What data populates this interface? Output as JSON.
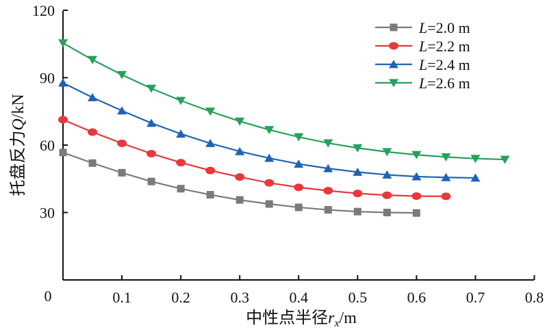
{
  "chart_data": {
    "type": "line",
    "title": "",
    "xlabel": "中性点半径r_x/m",
    "xlabel_main": "中性点半径",
    "xlabel_var": "r",
    "xlabel_sub": "x",
    "xlabel_unit": "/m",
    "ylabel": "托盘反力Q/kN",
    "ylabel_main": "托盘反力",
    "ylabel_var": "Q",
    "ylabel_unit": "/kN",
    "xlim": [
      0,
      0.8
    ],
    "ylim": [
      0,
      120
    ],
    "origin_label": "0",
    "xticks": [
      0.1,
      0.2,
      0.3,
      0.4,
      0.5,
      0.6,
      0.7,
      0.8
    ],
    "xtick_labels": [
      "0.1",
      "0.2",
      "0.3",
      "0.4",
      "0.5",
      "0.6",
      "0.7",
      "0.8"
    ],
    "yticks": [
      30,
      60,
      90,
      120
    ],
    "ytick_labels": [
      "30",
      "60",
      "90",
      "120"
    ],
    "grid": false,
    "legend_position": "top-right",
    "series": [
      {
        "name": "L=2.0 m",
        "var": "L",
        "label_rest": "=2.0 m",
        "color": "#7a7a7a",
        "marker": "square",
        "x": [
          0,
          0.05,
          0.1,
          0.15,
          0.2,
          0.25,
          0.3,
          0.35,
          0.4,
          0.45,
          0.5,
          0.55,
          0.6
        ],
        "values": [
          56.7,
          52,
          47.7,
          43.8,
          40.6,
          37.9,
          35.6,
          33.8,
          32.3,
          31.2,
          30.4,
          30.0,
          29.8
        ]
      },
      {
        "name": "L=2.2 m",
        "var": "L",
        "label_rest": "=2.2 m",
        "color": "#e8383a",
        "marker": "circle",
        "x": [
          0,
          0.05,
          0.1,
          0.15,
          0.2,
          0.25,
          0.3,
          0.35,
          0.4,
          0.45,
          0.5,
          0.55,
          0.6,
          0.65
        ],
        "values": [
          71.3,
          65.8,
          60.8,
          56.2,
          52.2,
          48.7,
          45.8,
          43.2,
          41.2,
          39.7,
          38.5,
          37.7,
          37.3,
          37.2
        ]
      },
      {
        "name": "L=2.4 m",
        "var": "L",
        "label_rest": "=2.4 m",
        "color": "#1f63b5",
        "marker": "triangle-up",
        "x": [
          0,
          0.05,
          0.1,
          0.15,
          0.2,
          0.25,
          0.3,
          0.35,
          0.4,
          0.45,
          0.5,
          0.55,
          0.6,
          0.65,
          0.7
        ],
        "values": [
          87.7,
          81.2,
          75.3,
          69.8,
          65.0,
          60.8,
          57.2,
          54.2,
          51.6,
          49.6,
          48.0,
          46.8,
          46.0,
          45.6,
          45.4
        ]
      },
      {
        "name": "L=2.6 m",
        "var": "L",
        "label_rest": "=2.6 m",
        "color": "#27a05a",
        "marker": "triangle-down",
        "x": [
          0,
          0.05,
          0.1,
          0.15,
          0.2,
          0.25,
          0.3,
          0.35,
          0.4,
          0.45,
          0.5,
          0.55,
          0.6,
          0.65,
          0.7,
          0.75
        ],
        "values": [
          105.4,
          98.0,
          91.3,
          85.2,
          79.8,
          75.0,
          70.6,
          66.8,
          63.6,
          60.9,
          58.7,
          57.0,
          55.7,
          54.7,
          54.0,
          53.6
        ]
      }
    ]
  }
}
